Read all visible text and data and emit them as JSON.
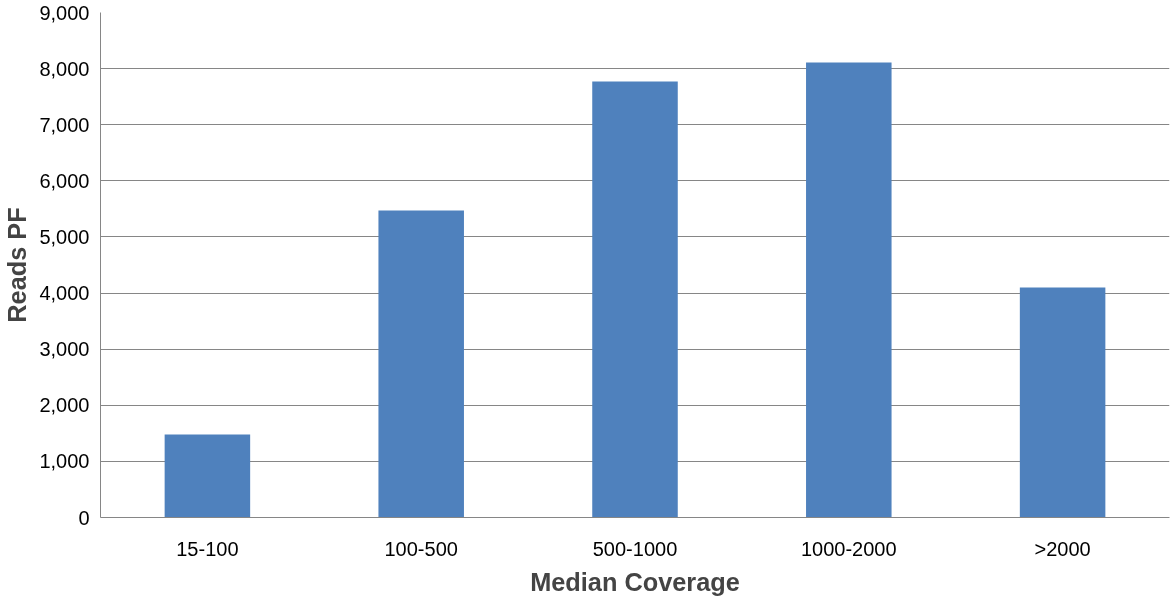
{
  "chart_data": {
    "type": "bar",
    "xlabel": "Median Coverage",
    "ylabel": "Reads PF",
    "categories": [
      "15-100",
      "100-500",
      "500-1000",
      "1000-2000",
      ">2000"
    ],
    "values": [
      1480,
      5470,
      7770,
      8110,
      4100
    ],
    "color": "#4f81bd",
    "ylim": [
      0,
      9000
    ],
    "yticks": [
      {
        "value": 0,
        "label": "0"
      },
      {
        "value": 1000,
        "label": "1,000"
      },
      {
        "value": 2000,
        "label": "2,000"
      },
      {
        "value": 3000,
        "label": "3,000"
      },
      {
        "value": 4000,
        "label": "4,000"
      },
      {
        "value": 5000,
        "label": "5,000"
      },
      {
        "value": 6000,
        "label": "6,000"
      },
      {
        "value": 7000,
        "label": "7,000"
      },
      {
        "value": 8000,
        "label": "8,000"
      },
      {
        "value": 9000,
        "label": "9,000"
      }
    ],
    "grid": "y"
  }
}
